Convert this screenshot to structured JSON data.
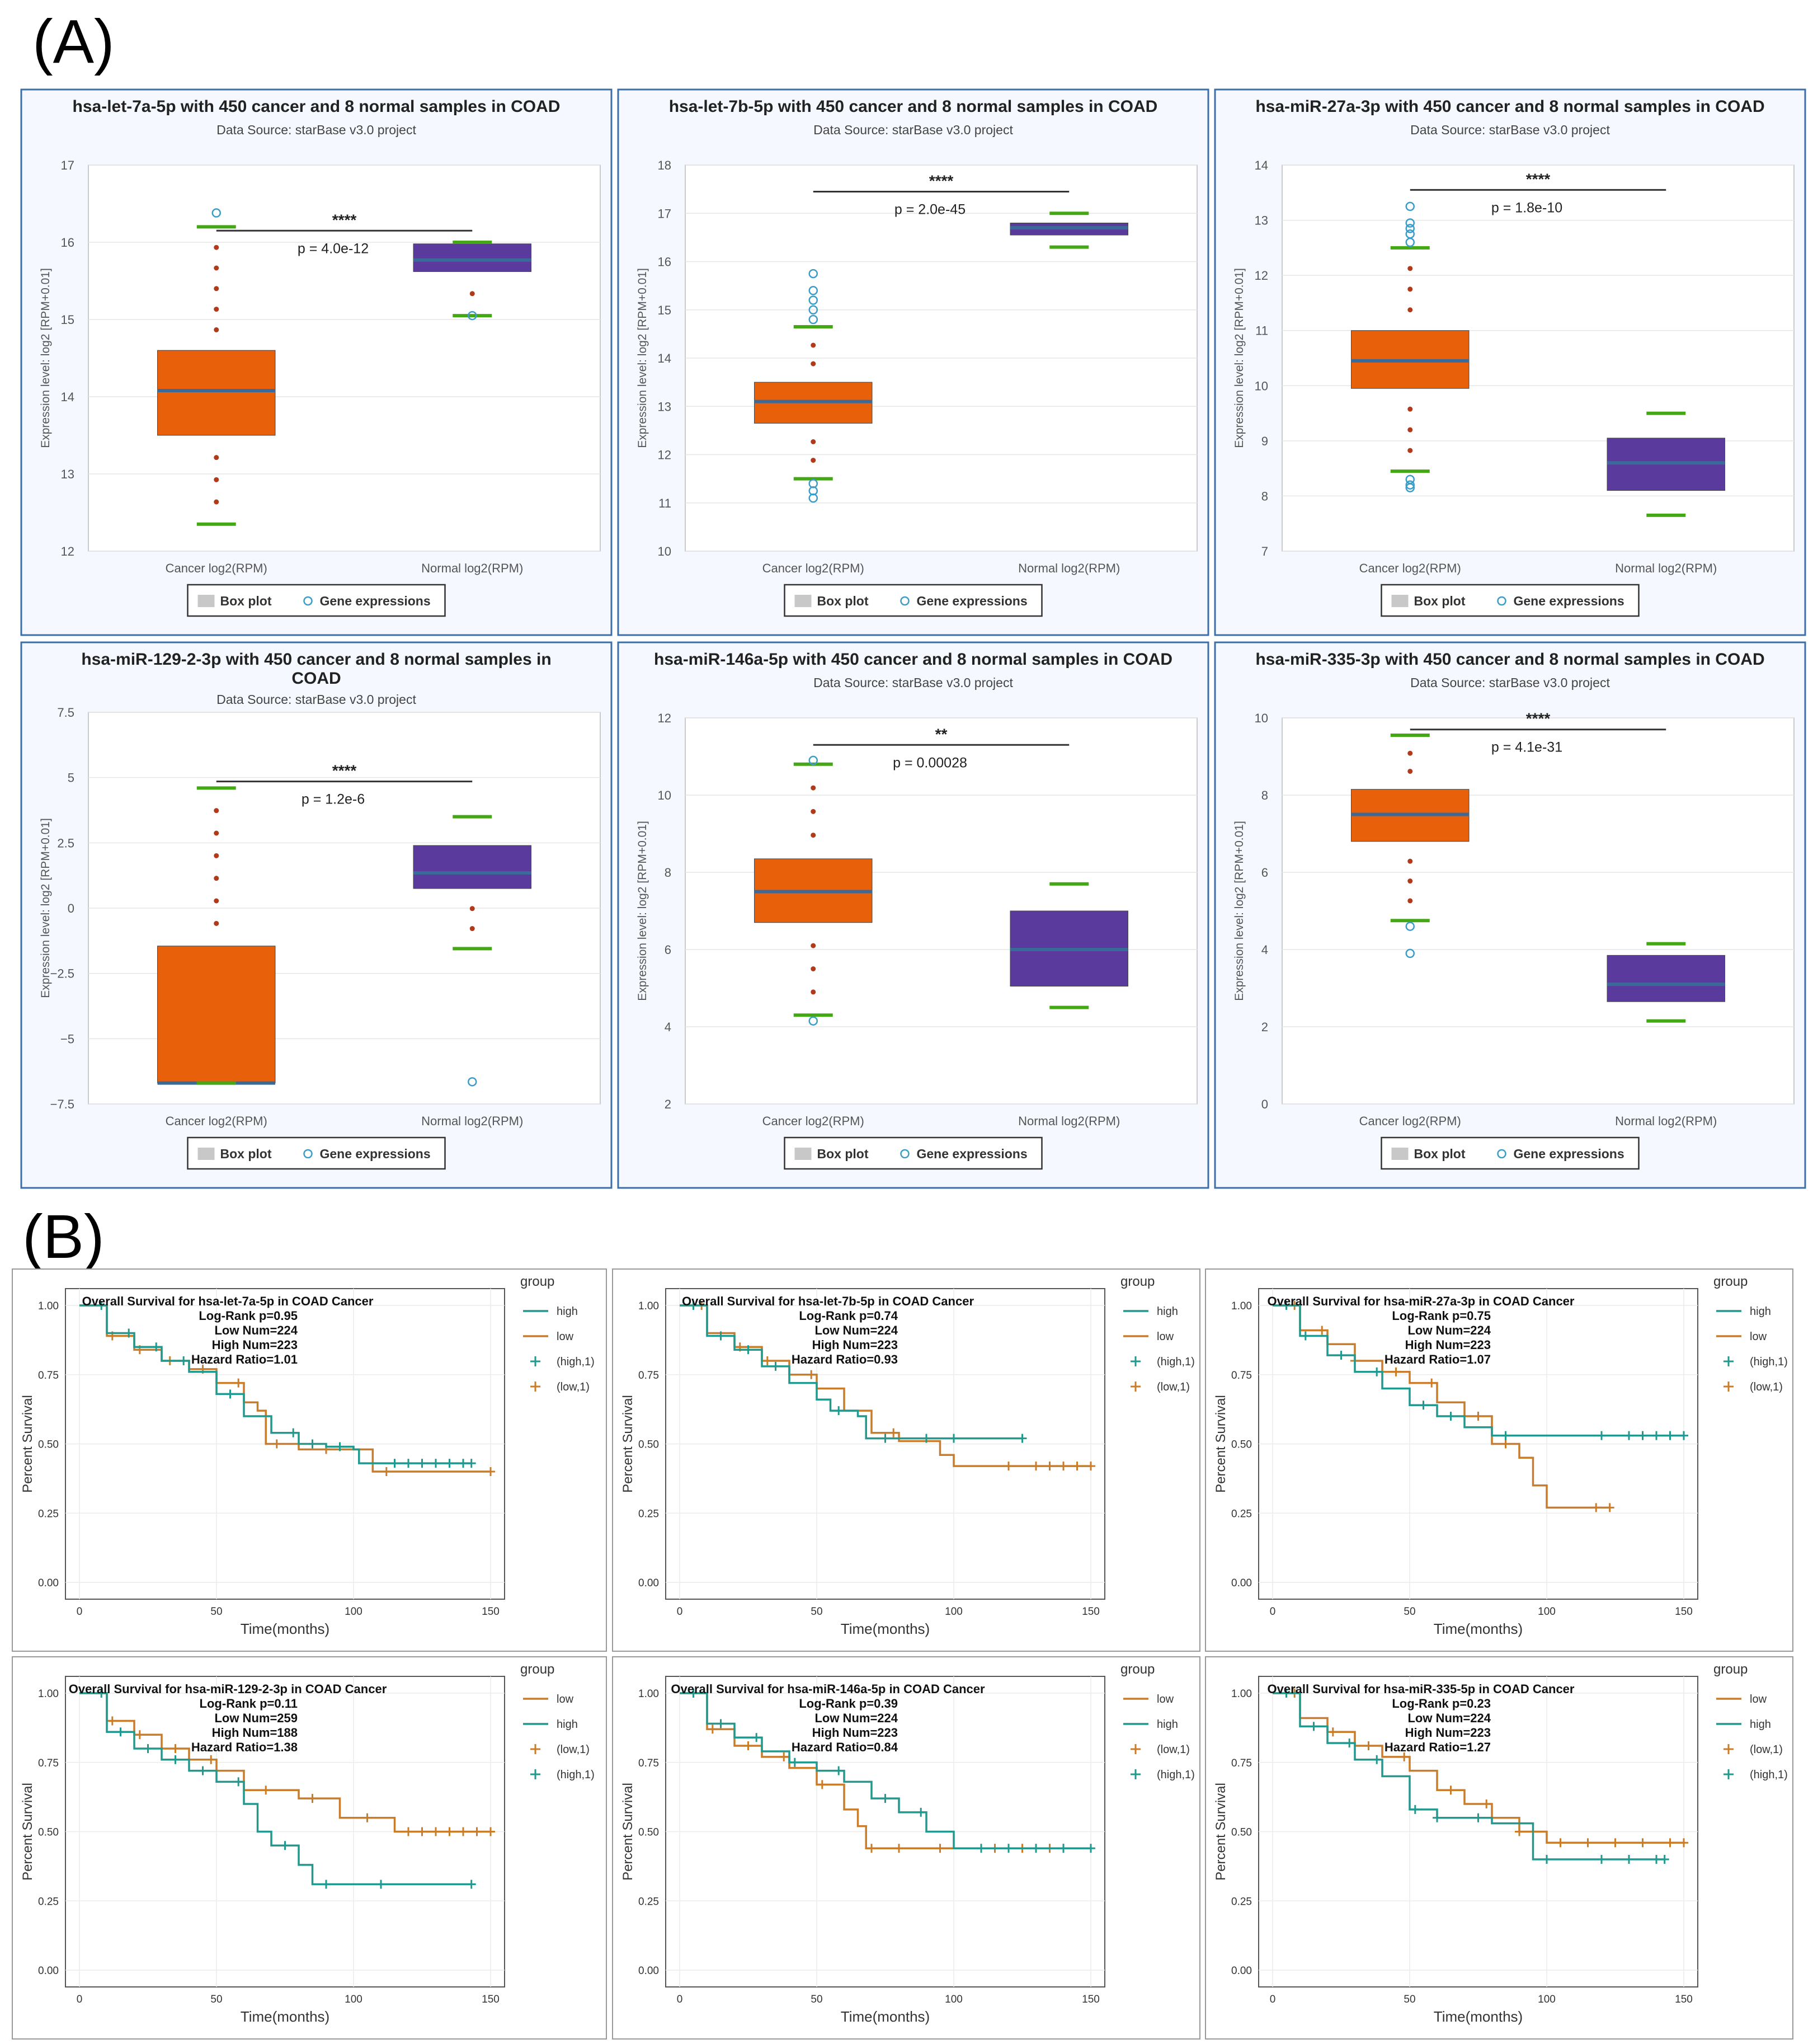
{
  "section_labels": {
    "a": "(A)",
    "b": "(B)"
  },
  "common": {
    "data_source": "Data Source: starBase v3.0 project",
    "y_label": "Expression level: log2 [RPM+0.01]",
    "cat_cancer": "Cancer log2(RPM)",
    "cat_normal": "Normal log2(RPM)",
    "legend_box": "Box plot",
    "legend_gene": "Gene expressions",
    "km_ylabel": "Percent Survival",
    "km_xlabel": "Time(months)",
    "km_group_title": "group"
  },
  "colors": {
    "cancer_box": "#E8600A",
    "normal_box": "#5B3A9E",
    "median": "#3A6A9A",
    "whisker": "#44A815",
    "dots": "#B03A1A",
    "outlier": "#3A9CC8",
    "panel_border": "#3C6FA8",
    "km_high": "#21998E",
    "km_low": "#C97C2A"
  },
  "chart_data": [
    {
      "id": "box1",
      "type": "box",
      "title": "hsa-let-7a-5p with 450 cancer and 8 normal samples in COAD",
      "ylim": [
        12,
        17
      ],
      "yticks": [
        "12",
        "13",
        "14",
        "15",
        "16",
        "17"
      ],
      "tickvals": [
        12,
        13,
        14,
        15,
        16,
        17
      ],
      "sig": "****",
      "pval": "p =  4.0e-12",
      "sig_y": 16.15,
      "cancer": {
        "whisker_lo": 12.35,
        "q1": 13.5,
        "median": 14.08,
        "q3": 14.6,
        "whisker_hi": 16.2,
        "outliers": [
          16.38
        ]
      },
      "normal": {
        "whisker_lo": 15.05,
        "q1": 15.62,
        "median": 15.77,
        "q3": 15.98,
        "whisker_hi": 16.0,
        "outliers": [
          15.05
        ]
      }
    },
    {
      "id": "box2",
      "type": "box",
      "title": "hsa-let-7b-5p with 450 cancer and 8 normal samples in COAD",
      "ylim": [
        10,
        18
      ],
      "yticks": [
        "10",
        "11",
        "12",
        "13",
        "14",
        "15",
        "16",
        "17",
        "18"
      ],
      "tickvals": [
        10,
        11,
        12,
        13,
        14,
        15,
        16,
        17,
        18
      ],
      "sig": "****",
      "pval": "p =  2.0e-45",
      "sig_y": 17.45,
      "cancer": {
        "whisker_lo": 11.5,
        "q1": 12.65,
        "median": 13.1,
        "q3": 13.5,
        "whisker_hi": 14.65,
        "outliers": [
          15.75,
          15.4,
          15.2,
          15.0,
          14.8,
          11.4,
          11.25,
          11.1
        ]
      },
      "normal": {
        "whisker_lo": 16.3,
        "q1": 16.55,
        "median": 16.7,
        "q3": 16.8,
        "whisker_hi": 17.0,
        "outliers": []
      }
    },
    {
      "id": "box3",
      "type": "box",
      "title": "hsa-miR-27a-3p with 450 cancer and 8 normal samples in COAD",
      "ylim": [
        7,
        14
      ],
      "yticks": [
        "7",
        "8",
        "9",
        "10",
        "11",
        "12",
        "13",
        "14"
      ],
      "tickvals": [
        7,
        8,
        9,
        10,
        11,
        12,
        13,
        14
      ],
      "sig": "****",
      "pval": "p =  1.8e-10",
      "sig_y": 13.55,
      "cancer": {
        "whisker_lo": 8.45,
        "q1": 9.95,
        "median": 10.45,
        "q3": 11.0,
        "whisker_hi": 12.5,
        "outliers": [
          13.25,
          12.95,
          12.85,
          12.75,
          12.6,
          8.3,
          8.2,
          8.15
        ]
      },
      "normal": {
        "whisker_lo": 7.65,
        "q1": 8.1,
        "median": 8.6,
        "q3": 9.05,
        "whisker_hi": 9.5,
        "outliers": []
      }
    },
    {
      "id": "box4",
      "type": "box",
      "title": "hsa-miR-129-2-3p with 450 cancer and 8 normal samples in COAD",
      "ylim": [
        -7.5,
        7.5
      ],
      "yticks": [
        "−7.5",
        "−5",
        "−2.5",
        "0",
        "2.5",
        "5",
        "7.5"
      ],
      "tickvals": [
        -7.5,
        -5,
        -2.5,
        0,
        2.5,
        5,
        7.5
      ],
      "sig": "****",
      "pval": "p =  1.2e-6",
      "sig_y": 4.85,
      "cancer": {
        "whisker_lo": -6.7,
        "q1": -6.7,
        "median": -6.7,
        "q3": -1.45,
        "whisker_hi": 4.6,
        "outliers": []
      },
      "normal": {
        "whisker_lo": -1.55,
        "q1": 0.75,
        "median": 1.35,
        "q3": 2.4,
        "whisker_hi": 3.5,
        "outliers": [
          -6.65
        ]
      }
    },
    {
      "id": "box5",
      "type": "box",
      "title": "hsa-miR-146a-5p with 450 cancer and 8 normal samples in COAD",
      "ylim": [
        2,
        12
      ],
      "yticks": [
        "2",
        "4",
        "6",
        "8",
        "10",
        "12"
      ],
      "tickvals": [
        2,
        4,
        6,
        8,
        10,
        12
      ],
      "sig": "**",
      "pval": "p =  0.00028",
      "sig_y": 11.3,
      "cancer": {
        "whisker_lo": 4.3,
        "q1": 6.7,
        "median": 7.5,
        "q3": 8.35,
        "whisker_hi": 10.8,
        "outliers": [
          10.9,
          4.15
        ]
      },
      "normal": {
        "whisker_lo": 4.5,
        "q1": 5.05,
        "median": 6.0,
        "q3": 7.0,
        "whisker_hi": 7.7,
        "outliers": []
      }
    },
    {
      "id": "box6",
      "type": "box",
      "title": "hsa-miR-335-3p with 450 cancer and 8 normal samples in COAD",
      "ylim": [
        0,
        10
      ],
      "yticks": [
        "0",
        "2",
        "4",
        "6",
        "8",
        "10"
      ],
      "tickvals": [
        0,
        2,
        4,
        6,
        8,
        10
      ],
      "sig": "****",
      "pval": "p =  4.1e-31",
      "sig_y": 9.7,
      "cancer": {
        "whisker_lo": 4.75,
        "q1": 6.8,
        "median": 7.5,
        "q3": 8.15,
        "whisker_hi": 9.55,
        "outliers": [
          4.6,
          3.9
        ]
      },
      "normal": {
        "whisker_lo": 2.15,
        "q1": 2.65,
        "median": 3.1,
        "q3": 3.85,
        "whisker_hi": 4.15,
        "outliers": []
      }
    },
    {
      "id": "km1",
      "type": "km",
      "title": "Overall Survival for hsa-let-7a-5p in COAD Cancer",
      "stats": [
        "Log-Rank p=0.95",
        "Low Num=224",
        "High Num=223",
        "Hazard Ratio=1.01"
      ],
      "legend": [
        "high",
        "low",
        "(high,1)",
        "(low,1)"
      ],
      "legend_kinds": [
        "high",
        "low",
        "high",
        "low"
      ],
      "xlim": [
        0,
        150
      ],
      "xticks": [
        0,
        50,
        100,
        150
      ],
      "ylim": [
        0,
        1
      ],
      "yticks": [
        "0.00",
        "0.25",
        "0.50",
        "0.75",
        "1.00"
      ],
      "high": [
        [
          0,
          1
        ],
        [
          10,
          0.9
        ],
        [
          20,
          0.85
        ],
        [
          30,
          0.8
        ],
        [
          40,
          0.76
        ],
        [
          50,
          0.68
        ],
        [
          60,
          0.6
        ],
        [
          70,
          0.54
        ],
        [
          80,
          0.5
        ],
        [
          90,
          0.49
        ],
        [
          100,
          0.48
        ],
        [
          102,
          0.43
        ],
        [
          143,
          0.43
        ]
      ],
      "low": [
        [
          0,
          1
        ],
        [
          10,
          0.89
        ],
        [
          20,
          0.84
        ],
        [
          30,
          0.8
        ],
        [
          40,
          0.77
        ],
        [
          50,
          0.72
        ],
        [
          60,
          0.65
        ],
        [
          65,
          0.62
        ],
        [
          68,
          0.5
        ],
        [
          80,
          0.48
        ],
        [
          100,
          0.48
        ],
        [
          107,
          0.4
        ],
        [
          150,
          0.4
        ]
      ],
      "high_cens": [
        8,
        18,
        28,
        38,
        55,
        78,
        85,
        95,
        115,
        120,
        125,
        130,
        135,
        140,
        143
      ],
      "low_cens": [
        12,
        22,
        33,
        45,
        58,
        72,
        90,
        112,
        150
      ]
    },
    {
      "id": "km2",
      "type": "km",
      "title": "Overall Survival for hsa-let-7b-5p in COAD Cancer",
      "stats": [
        "Log-Rank p=0.74",
        "Low Num=224",
        "High Num=223",
        "Hazard Ratio=0.93"
      ],
      "legend": [
        "high",
        "low",
        "(high,1)",
        "(low,1)"
      ],
      "legend_kinds": [
        "high",
        "low",
        "high",
        "low"
      ],
      "xlim": [
        0,
        150
      ],
      "xticks": [
        0,
        50,
        100,
        150
      ],
      "ylim": [
        0,
        1
      ],
      "yticks": [
        "0.00",
        "0.25",
        "0.50",
        "0.75",
        "1.00"
      ],
      "high": [
        [
          0,
          1
        ],
        [
          10,
          0.89
        ],
        [
          20,
          0.84
        ],
        [
          30,
          0.78
        ],
        [
          40,
          0.72
        ],
        [
          50,
          0.66
        ],
        [
          55,
          0.62
        ],
        [
          65,
          0.6
        ],
        [
          68,
          0.52
        ],
        [
          125,
          0.52
        ]
      ],
      "low": [
        [
          0,
          1
        ],
        [
          10,
          0.9
        ],
        [
          20,
          0.85
        ],
        [
          30,
          0.8
        ],
        [
          40,
          0.75
        ],
        [
          50,
          0.7
        ],
        [
          60,
          0.62
        ],
        [
          70,
          0.54
        ],
        [
          80,
          0.51
        ],
        [
          95,
          0.46
        ],
        [
          100,
          0.42
        ],
        [
          150,
          0.42
        ]
      ],
      "high_cens": [
        5,
        15,
        25,
        35,
        58,
        75,
        90,
        100,
        125
      ],
      "low_cens": [
        8,
        22,
        32,
        48,
        78,
        120,
        130,
        135,
        140,
        145,
        150
      ]
    },
    {
      "id": "km3",
      "type": "km",
      "title": "Overall Survival for hsa-miR-27a-3p in COAD Cancer",
      "stats": [
        "Log-Rank p=0.75",
        "Low Num=224",
        "High Num=223",
        "Hazard Ratio=1.07"
      ],
      "legend": [
        "high",
        "low",
        "(high,1)",
        "(low,1)"
      ],
      "legend_kinds": [
        "high",
        "low",
        "high",
        "low"
      ],
      "xlim": [
        0,
        150
      ],
      "xticks": [
        0,
        50,
        100,
        150
      ],
      "ylim": [
        0,
        1
      ],
      "yticks": [
        "0.00",
        "0.25",
        "0.50",
        "0.75",
        "1.00"
      ],
      "high": [
        [
          0,
          1
        ],
        [
          10,
          0.89
        ],
        [
          20,
          0.82
        ],
        [
          30,
          0.76
        ],
        [
          40,
          0.7
        ],
        [
          50,
          0.64
        ],
        [
          60,
          0.6
        ],
        [
          70,
          0.56
        ],
        [
          80,
          0.53
        ],
        [
          150,
          0.53
        ]
      ],
      "low": [
        [
          0,
          1
        ],
        [
          10,
          0.91
        ],
        [
          20,
          0.86
        ],
        [
          30,
          0.8
        ],
        [
          40,
          0.76
        ],
        [
          50,
          0.72
        ],
        [
          60,
          0.65
        ],
        [
          70,
          0.6
        ],
        [
          80,
          0.5
        ],
        [
          90,
          0.45
        ],
        [
          95,
          0.35
        ],
        [
          100,
          0.27
        ],
        [
          123,
          0.27
        ]
      ],
      "high_cens": [
        5,
        12,
        25,
        38,
        55,
        65,
        85,
        120,
        130,
        135,
        140,
        145,
        150
      ],
      "low_cens": [
        8,
        18,
        30,
        45,
        58,
        75,
        85,
        118,
        123
      ]
    },
    {
      "id": "km4",
      "type": "km",
      "title": "Overall Survival for hsa-miR-129-2-3p in COAD Cancer",
      "stats": [
        "Log-Rank p=0.11",
        "Low Num=259",
        "High Num=188",
        "Hazard Ratio=1.38"
      ],
      "legend": [
        "low",
        "high",
        "(low,1)",
        "(high,1)"
      ],
      "legend_kinds": [
        "low",
        "high",
        "low",
        "high"
      ],
      "xlim": [
        0,
        150
      ],
      "xticks": [
        0,
        50,
        100,
        150
      ],
      "ylim": [
        0,
        1
      ],
      "yticks": [
        "0.00",
        "0.25",
        "0.50",
        "0.75",
        "1.00"
      ],
      "high": [
        [
          0,
          1
        ],
        [
          10,
          0.86
        ],
        [
          20,
          0.8
        ],
        [
          30,
          0.76
        ],
        [
          40,
          0.72
        ],
        [
          50,
          0.68
        ],
        [
          60,
          0.6
        ],
        [
          65,
          0.5
        ],
        [
          70,
          0.45
        ],
        [
          80,
          0.38
        ],
        [
          85,
          0.31
        ],
        [
          143,
          0.31
        ]
      ],
      "low": [
        [
          0,
          1
        ],
        [
          10,
          0.9
        ],
        [
          20,
          0.85
        ],
        [
          30,
          0.8
        ],
        [
          40,
          0.76
        ],
        [
          50,
          0.72
        ],
        [
          60,
          0.65
        ],
        [
          80,
          0.62
        ],
        [
          95,
          0.55
        ],
        [
          115,
          0.5
        ],
        [
          150,
          0.5
        ]
      ],
      "high_cens": [
        8,
        15,
        25,
        35,
        45,
        58,
        75,
        90,
        110,
        143
      ],
      "low_cens": [
        12,
        22,
        35,
        48,
        68,
        85,
        105,
        120,
        125,
        130,
        135,
        140,
        145,
        150
      ]
    },
    {
      "id": "km5",
      "type": "km",
      "title": "Overall Survival for hsa-miR-146a-5p in COAD Cancer",
      "stats": [
        "Log-Rank p=0.39",
        "Low Num=224",
        "High Num=223",
        "Hazard Ratio=0.84"
      ],
      "legend": [
        "low",
        "high",
        "(low,1)",
        "(high,1)"
      ],
      "legend_kinds": [
        "low",
        "high",
        "low",
        "high"
      ],
      "xlim": [
        0,
        150
      ],
      "xticks": [
        0,
        50,
        100,
        150
      ],
      "ylim": [
        0,
        1
      ],
      "yticks": [
        "0.00",
        "0.25",
        "0.50",
        "0.75",
        "1.00"
      ],
      "high": [
        [
          0,
          1
        ],
        [
          10,
          0.89
        ],
        [
          20,
          0.84
        ],
        [
          30,
          0.79
        ],
        [
          40,
          0.75
        ],
        [
          50,
          0.72
        ],
        [
          60,
          0.68
        ],
        [
          70,
          0.62
        ],
        [
          80,
          0.57
        ],
        [
          90,
          0.5
        ],
        [
          100,
          0.44
        ],
        [
          150,
          0.44
        ]
      ],
      "low": [
        [
          0,
          1
        ],
        [
          10,
          0.87
        ],
        [
          20,
          0.81
        ],
        [
          30,
          0.77
        ],
        [
          40,
          0.73
        ],
        [
          50,
          0.67
        ],
        [
          60,
          0.58
        ],
        [
          65,
          0.52
        ],
        [
          68,
          0.44
        ],
        [
          100,
          0.44
        ],
        [
          140,
          0.44
        ]
      ],
      "high_cens": [
        5,
        15,
        28,
        42,
        58,
        75,
        88,
        110,
        120,
        130,
        140,
        150
      ],
      "low_cens": [
        12,
        25,
        38,
        52,
        70,
        80,
        95,
        115,
        125,
        135,
        140
      ]
    },
    {
      "id": "km6",
      "type": "km",
      "title": "Overall Survival for hsa-miR-335-5p in COAD Cancer",
      "stats": [
        "Log-Rank p=0.23",
        "Low Num=224",
        "High Num=223",
        "Hazard Ratio=1.27"
      ],
      "legend": [
        "low",
        "high",
        "(low,1)",
        "(high,1)"
      ],
      "legend_kinds": [
        "low",
        "high",
        "low",
        "high"
      ],
      "xlim": [
        0,
        150
      ],
      "xticks": [
        0,
        50,
        100,
        150
      ],
      "ylim": [
        0,
        1
      ],
      "yticks": [
        "0.00",
        "0.25",
        "0.50",
        "0.75",
        "1.00"
      ],
      "high": [
        [
          0,
          1
        ],
        [
          10,
          0.88
        ],
        [
          20,
          0.82
        ],
        [
          30,
          0.76
        ],
        [
          40,
          0.7
        ],
        [
          50,
          0.58
        ],
        [
          60,
          0.55
        ],
        [
          80,
          0.53
        ],
        [
          95,
          0.4
        ],
        [
          143,
          0.4
        ]
      ],
      "low": [
        [
          0,
          1
        ],
        [
          10,
          0.91
        ],
        [
          20,
          0.86
        ],
        [
          30,
          0.81
        ],
        [
          40,
          0.77
        ],
        [
          50,
          0.72
        ],
        [
          60,
          0.65
        ],
        [
          70,
          0.6
        ],
        [
          80,
          0.55
        ],
        [
          90,
          0.5
        ],
        [
          100,
          0.46
        ],
        [
          150,
          0.46
        ]
      ],
      "high_cens": [
        5,
        15,
        28,
        38,
        52,
        60,
        75,
        100,
        120,
        130,
        140,
        143
      ],
      "low_cens": [
        8,
        22,
        35,
        48,
        65,
        78,
        90,
        105,
        115,
        125,
        135,
        145,
        150
      ]
    }
  ]
}
